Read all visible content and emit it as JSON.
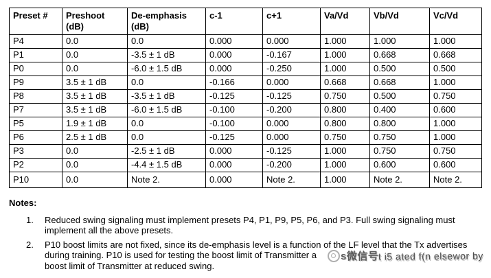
{
  "table": {
    "columns": [
      "Preset #",
      "Preshoot\n(dB)",
      "De-emphasis\n(dB)",
      "c-1",
      "c+1",
      "Va/Vd",
      "Vb/Vd",
      "Vc/Vd"
    ],
    "rows": [
      [
        "P4",
        "0.0",
        "0.0",
        "0.000",
        "0.000",
        "1.000",
        "1.000",
        "1.000"
      ],
      [
        "P1",
        "0.0",
        "-3.5 ± 1 dB",
        "0.000",
        "-0.167",
        "1.000",
        "0.668",
        "0.668"
      ],
      [
        "P0",
        "0.0",
        "-6.0 ± 1.5 dB",
        "0.000",
        "-0.250",
        "1.000",
        "0.500",
        "0.500"
      ],
      [
        "P9",
        "3.5 ± 1 dB",
        "0.0",
        "-0.166",
        "0.000",
        "0.668",
        "0.668",
        "1.000"
      ],
      [
        "P8",
        "3.5 ± 1 dB",
        "-3.5 ± 1 dB",
        "-0.125",
        "-0.125",
        "0.750",
        "0.500",
        "0.750"
      ],
      [
        "P7",
        "3.5 ± 1 dB",
        "-6.0 ± 1.5 dB",
        "-0.100",
        "-0.200",
        "0.800",
        "0.400",
        "0.600"
      ],
      [
        "P5",
        "1.9 ± 1 dB",
        "0.0",
        "-0.100",
        "0.000",
        "0.800",
        "0.800",
        "1.000"
      ],
      [
        "P6",
        "2.5 ± 1 dB",
        "0.0",
        "-0.125",
        "0.000",
        "0.750",
        "0.750",
        "1.000"
      ],
      [
        "P3",
        "0.0",
        "-2.5 ± 1 dB",
        "0.000",
        "-0.125",
        "1.000",
        "0.750",
        "0.750"
      ],
      [
        "P2",
        "0.0",
        "-4.4 ± 1.5 dB",
        "0.000",
        "-0.200",
        "1.000",
        "0.600",
        "0.600"
      ],
      [
        "P10",
        "0.0",
        "Note 2.",
        "0.000",
        "Note 2.",
        "1.000",
        "Note 2.",
        "Note 2."
      ]
    ]
  },
  "notes": {
    "heading": "Notes:",
    "items": [
      {
        "num": "1.",
        "lines": [
          "Reduced swing signaling must implement presets P4, P1, P9, P5, P6, and P3. Full swing signaling must",
          "implement all the above presets."
        ]
      },
      {
        "num": "2.",
        "lines": [
          "P10 boost limits are not fixed, since its de-emphasis level is a function of the LF level that the Tx advertises",
          "during training. P10 is used for testing the boost limit of Transmitter a",
          "boost limit of Transmitter at reduced swing."
        ]
      }
    ]
  },
  "watermark": {
    "icon": "wechat-search-icon",
    "cn_text": "s微信号",
    "mixed_text": "t i5 ated f(n elsewor by"
  }
}
